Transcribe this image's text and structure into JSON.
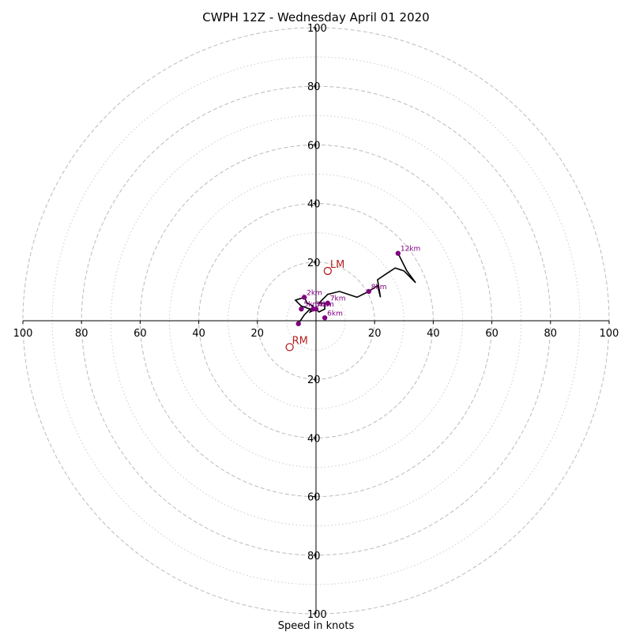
{
  "chart_data": {
    "type": "hodograph",
    "title": "CWPH 12Z - Wednesday April 01 2020",
    "xlabel": "Speed in knots",
    "rings": {
      "dashed": [
        20,
        40,
        60,
        80,
        100
      ],
      "dotted": [
        10,
        30,
        50,
        70,
        90
      ]
    },
    "range": [
      -100,
      100
    ],
    "x_ticks": [
      "100",
      "80",
      "60",
      "40",
      "20",
      "20",
      "40",
      "60",
      "80",
      "100"
    ],
    "y_ticks": [
      "100",
      "80",
      "60",
      "40",
      "20",
      "20",
      "40",
      "60",
      "80",
      "100"
    ],
    "hodograph_line": {
      "color": "#000000",
      "points": [
        [
          -6,
          -1
        ],
        [
          -4,
          2
        ],
        [
          -2,
          4
        ],
        [
          -5,
          5
        ],
        [
          -7,
          7
        ],
        [
          -4,
          8
        ],
        [
          -3,
          6
        ],
        [
          -1,
          5
        ],
        [
          -2,
          3
        ],
        [
          0,
          4
        ],
        [
          1,
          3
        ],
        [
          3,
          4
        ],
        [
          3,
          6
        ],
        [
          1,
          6
        ],
        [
          4,
          9
        ],
        [
          8,
          10
        ],
        [
          14,
          8
        ],
        [
          18,
          10
        ],
        [
          21,
          12
        ],
        [
          22,
          8
        ],
        [
          21,
          14
        ],
        [
          24,
          16
        ],
        [
          27,
          18
        ],
        [
          30,
          17
        ],
        [
          34,
          13
        ],
        [
          31,
          17
        ],
        [
          28,
          23
        ]
      ]
    },
    "height_markers": [
      {
        "label": "",
        "u": -6,
        "v": -1
      },
      {
        "label": "2km",
        "u": -4,
        "v": 8
      },
      {
        "label": "3km",
        "u": -1,
        "v": 4
      },
      {
        "label": "4km",
        "u": 0,
        "v": 4
      },
      {
        "label": "5km",
        "u": -5,
        "v": 4
      },
      {
        "label": "6km",
        "u": 3,
        "v": 1
      },
      {
        "label": "7km",
        "u": 4,
        "v": 6
      },
      {
        "label": "8km",
        "u": 18,
        "v": 10
      },
      {
        "label": "12km",
        "u": 28,
        "v": 23
      }
    ],
    "storm_motion": [
      {
        "label": "LM",
        "u": 4,
        "v": 17
      },
      {
        "label": "RM",
        "u": -9,
        "v": -9
      }
    ],
    "colors": {
      "marker": "#800080",
      "storm_motion": "#b22222",
      "rings": "#bbbbbb"
    }
  }
}
